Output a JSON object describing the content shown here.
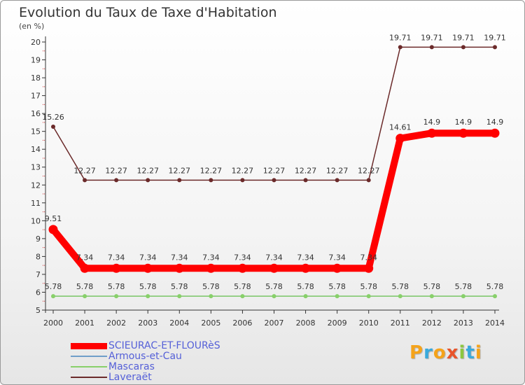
{
  "title": "Evolution du Taux de Taxe d'Habitation",
  "unit_label": "(en %)",
  "logo": {
    "letters": [
      "P",
      "r",
      "o",
      "x",
      "i",
      "t",
      "i"
    ],
    "colors": [
      "#f5a31a",
      "#39a9db",
      "#f5a31a",
      "#e8542b",
      "#8cc63f",
      "#39a9db",
      "#f5a31a"
    ]
  },
  "chart_data": {
    "type": "line",
    "title": "Evolution du Taux de Taxe d'Habitation",
    "ylabel": "(en %)",
    "xlabel": "",
    "ylim": [
      5,
      20
    ],
    "yticks": [
      "5",
      "6",
      "7",
      "8",
      "9",
      "10",
      "11",
      "12",
      "13",
      "14",
      "15",
      "16",
      "17",
      "18",
      "19",
      "20"
    ],
    "x": [
      "2000",
      "2001",
      "2002",
      "2003",
      "2004",
      "2005",
      "2006",
      "2007",
      "2008",
      "2009",
      "2010",
      "2011",
      "2012",
      "2013",
      "2014"
    ],
    "grid": false,
    "legend_position": "bottom-left",
    "series": [
      {
        "name": "SCIEURAC-ET-FLOURèS",
        "color": "#ff0000",
        "values": [
          9.51,
          7.34,
          7.34,
          7.34,
          7.34,
          7.34,
          7.34,
          7.34,
          7.34,
          7.34,
          7.34,
          14.61,
          14.9,
          14.9,
          14.9
        ],
        "labels": [
          "9.51",
          "7.34",
          "7.34",
          "7.34",
          "7.34",
          "7.34",
          "7.34",
          "7.34",
          "7.34",
          "7.34",
          "7.34",
          "14.61",
          "14.9",
          "14.9",
          "14.9"
        ]
      },
      {
        "name": "Armous-et-Cau",
        "color": "#6f9fc9",
        "values": [
          5.78,
          5.78,
          5.78,
          5.78,
          5.78,
          5.78,
          5.78,
          5.78,
          5.78,
          5.78,
          5.78,
          5.78,
          5.78,
          5.78,
          5.78
        ],
        "labels": []
      },
      {
        "name": "Mascaras",
        "color": "#88d06a",
        "values": [
          5.78,
          5.78,
          5.78,
          5.78,
          5.78,
          5.78,
          5.78,
          5.78,
          5.78,
          5.78,
          5.78,
          5.78,
          5.78,
          5.78,
          5.78
        ],
        "labels": [
          "5.78",
          "5.78",
          "5.78",
          "5.78",
          "5.78",
          "5.78",
          "5.78",
          "5.78",
          "5.78",
          "5.78",
          "5.78",
          "5.78",
          "5.78",
          "5.78",
          "5.78"
        ]
      },
      {
        "name": "Laveraët",
        "color": "#6b2a2a",
        "values": [
          15.26,
          12.27,
          12.27,
          12.27,
          12.27,
          12.27,
          12.27,
          12.27,
          12.27,
          12.27,
          12.27,
          19.71,
          19.71,
          19.71,
          19.71
        ],
        "labels": [
          "15.26",
          "12.27",
          "12.27",
          "12.27",
          "12.27",
          "12.27",
          "12.27",
          "12.27",
          "12.27",
          "12.27",
          "12.27",
          "19.71",
          "19.71",
          "19.71",
          "19.71"
        ]
      }
    ]
  }
}
